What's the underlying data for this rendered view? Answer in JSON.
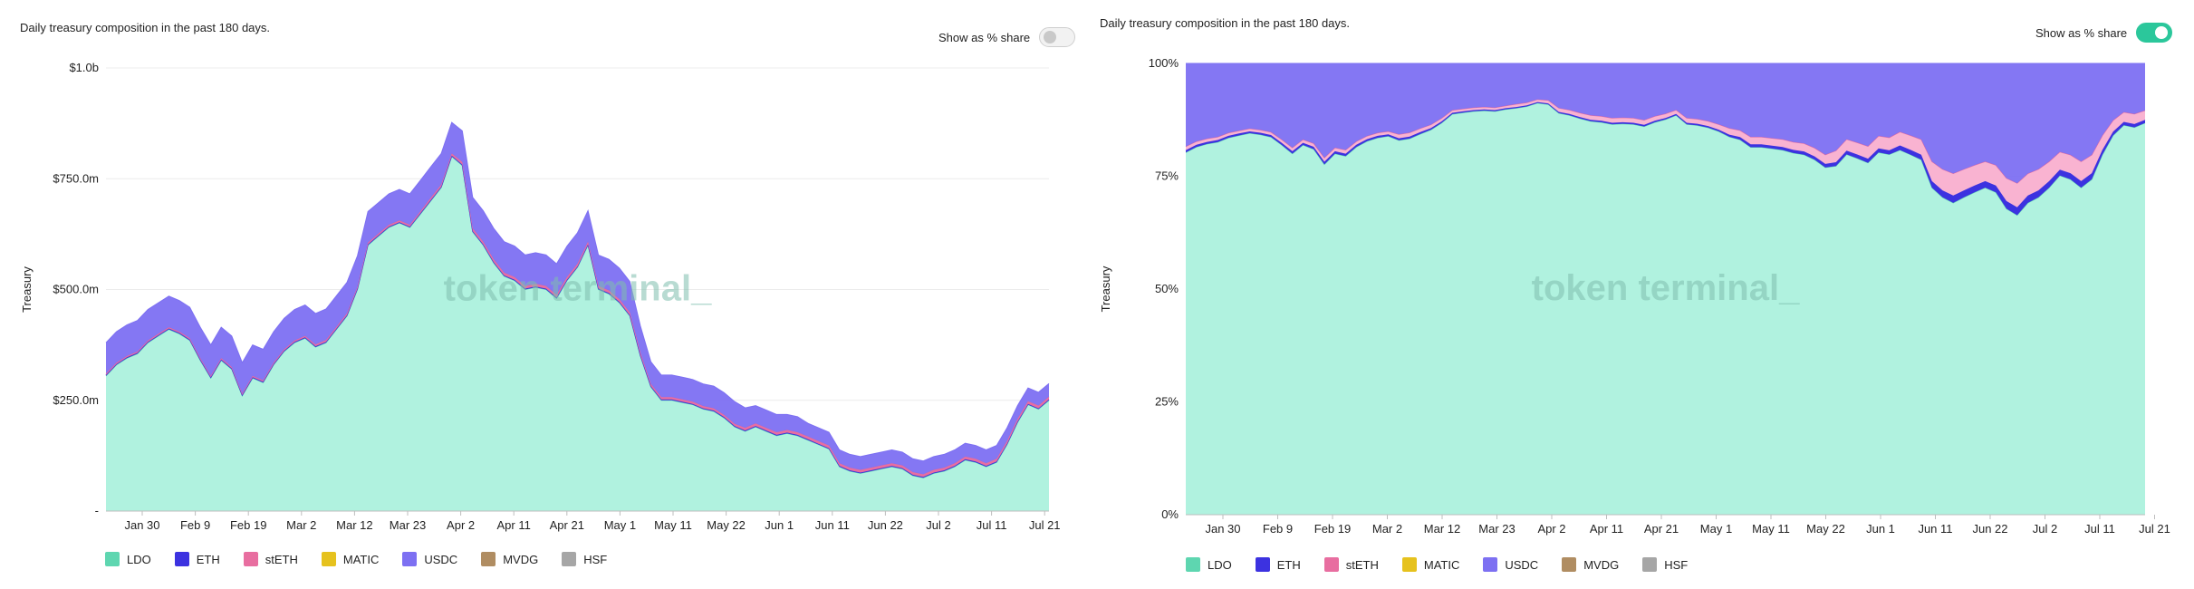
{
  "panels": [
    {
      "subtitle": "Daily treasury composition in the past 180 days.",
      "toggle_label": "Show as % share",
      "toggle_on": false
    },
    {
      "subtitle": "Daily treasury composition in the past 180 days.",
      "toggle_label": "Show as % share",
      "toggle_on": true
    }
  ],
  "watermark": "token terminal_",
  "legend": [
    {
      "name": "LDO",
      "color": "#5ed6b0"
    },
    {
      "name": "ETH",
      "color": "#3c32e0"
    },
    {
      "name": "stETH",
      "color": "#e86ea0"
    },
    {
      "name": "MATIC",
      "color": "#e6c21e"
    },
    {
      "name": "USDC",
      "color": "#7d70f2"
    },
    {
      "name": "MVDG",
      "color": "#b08d62"
    },
    {
      "name": "HSF",
      "color": "#a6a6a6"
    }
  ],
  "chart_data": [
    {
      "type": "area",
      "stacked": true,
      "ylabel": "Treasury",
      "ylim": [
        0,
        1000
      ],
      "y_unit": "millions USD",
      "yticks": [
        "-",
        "$250.0m",
        "$500.0m",
        "$750.0m",
        "$1.0b"
      ],
      "xticks": [
        "Jan 30",
        "Feb 9",
        "Feb 19",
        "Mar 2",
        "Mar 12",
        "Mar 23",
        "Apr 2",
        "Apr 11",
        "Apr 21",
        "May 1",
        "May 11",
        "May 22",
        "Jun 1",
        "Jun 11",
        "Jun 22",
        "Jul 2",
        "Jul 11",
        "Jul 21"
      ],
      "x_days": [
        "Jan 23",
        "Jan 25",
        "Jan 27",
        "Jan 29",
        "Jan 31",
        "Feb 2",
        "Feb 4",
        "Feb 6",
        "Feb 8",
        "Feb 10",
        "Feb 12",
        "Feb 14",
        "Feb 16",
        "Feb 18",
        "Feb 20",
        "Feb 22",
        "Feb 24",
        "Feb 26",
        "Feb 28",
        "Mar 2",
        "Mar 4",
        "Mar 6",
        "Mar 8",
        "Mar 10",
        "Mar 12",
        "Mar 14",
        "Mar 16",
        "Mar 18",
        "Mar 20",
        "Mar 22",
        "Mar 24",
        "Mar 26",
        "Mar 28",
        "Mar 30",
        "Apr 1",
        "Apr 3",
        "Apr 5",
        "Apr 7",
        "Apr 9",
        "Apr 11",
        "Apr 13",
        "Apr 15",
        "Apr 17",
        "Apr 19",
        "Apr 21",
        "Apr 23",
        "Apr 25",
        "Apr 27",
        "Apr 29",
        "May 1",
        "May 3",
        "May 5",
        "May 7",
        "May 9",
        "May 11",
        "May 13",
        "May 15",
        "May 17",
        "May 19",
        "May 21",
        "May 23",
        "May 25",
        "May 27",
        "May 29",
        "May 31",
        "Jun 2",
        "Jun 4",
        "Jun 6",
        "Jun 8",
        "Jun 10",
        "Jun 12",
        "Jun 14",
        "Jun 16",
        "Jun 18",
        "Jun 20",
        "Jun 22",
        "Jun 24",
        "Jun 26",
        "Jun 28",
        "Jun 30",
        "Jul 2",
        "Jul 4",
        "Jul 6",
        "Jul 8",
        "Jul 10",
        "Jul 12",
        "Jul 14",
        "Jul 16",
        "Jul 18",
        "Jul 20",
        "Jul 21"
      ],
      "series": [
        {
          "name": "LDO",
          "values": [
            305,
            330,
            345,
            355,
            380,
            395,
            410,
            400,
            385,
            340,
            300,
            340,
            320,
            260,
            300,
            290,
            330,
            360,
            380,
            390,
            370,
            380,
            410,
            440,
            500,
            600,
            620,
            640,
            650,
            640,
            670,
            700,
            730,
            800,
            780,
            630,
            600,
            560,
            530,
            520,
            500,
            505,
            500,
            480,
            520,
            550,
            600,
            500,
            490,
            470,
            440,
            350,
            280,
            250,
            250,
            245,
            240,
            230,
            225,
            210,
            190,
            180,
            190,
            180,
            170,
            175,
            170,
            160,
            150,
            140,
            100,
            90,
            85,
            90,
            95,
            100,
            95,
            80,
            75,
            85,
            90,
            100,
            115,
            110,
            100,
            110,
            150,
            200,
            240,
            230,
            250
          ]
        },
        {
          "name": "ETH",
          "values": [
            2,
            2,
            2,
            2,
            2,
            2,
            2,
            2,
            2,
            2,
            2,
            2,
            2,
            2,
            2,
            2,
            2,
            2,
            2,
            2,
            2,
            2,
            2,
            2,
            2,
            2,
            2,
            2,
            2,
            2,
            2,
            2,
            2,
            2,
            2,
            2,
            2,
            2,
            2,
            2,
            2,
            2,
            2,
            2,
            2,
            2,
            2,
            2,
            2,
            2,
            2,
            2,
            2,
            2,
            2,
            2,
            2,
            2,
            2,
            2,
            2,
            2,
            2,
            2,
            2,
            2,
            2,
            2,
            2,
            2,
            2,
            2,
            2,
            2,
            2,
            2,
            2,
            2,
            2,
            2,
            2,
            2,
            2,
            2,
            2,
            2,
            2,
            2,
            2,
            2,
            2
          ]
        },
        {
          "name": "stETH",
          "values": [
            3,
            3,
            3,
            3,
            3,
            3,
            3,
            3,
            3,
            3,
            3,
            3,
            3,
            3,
            3,
            3,
            3,
            3,
            3,
            3,
            4,
            4,
            4,
            4,
            4,
            4,
            4,
            4,
            4,
            4,
            4,
            5,
            5,
            5,
            6,
            6,
            6,
            6,
            6,
            6,
            6,
            6,
            6,
            6,
            6,
            6,
            6,
            6,
            6,
            6,
            6,
            6,
            5,
            5,
            5,
            5,
            5,
            5,
            5,
            5,
            5,
            6,
            6,
            6,
            6,
            6,
            6,
            6,
            6,
            6,
            6,
            6,
            6,
            6,
            6,
            6,
            6,
            6,
            6,
            6,
            6,
            6,
            6,
            6,
            6,
            6,
            6,
            6,
            6,
            6,
            6
          ]
        },
        {
          "name": "MATIC",
          "values": [
            0,
            0,
            0,
            0,
            0,
            0,
            0,
            0,
            0,
            0,
            0,
            0,
            0,
            0,
            0,
            0,
            0,
            0,
            0,
            0,
            0,
            0,
            0,
            0,
            0,
            0,
            0,
            0,
            0,
            0,
            0,
            0,
            0,
            0,
            0,
            0,
            0,
            0,
            0,
            0,
            0,
            0,
            0,
            0,
            0,
            0,
            0,
            0,
            0,
            0,
            0,
            0,
            0,
            0,
            0,
            0,
            0,
            0,
            0,
            0,
            0,
            0,
            0,
            0,
            0,
            0,
            0,
            0,
            0,
            0,
            0,
            0,
            0,
            0,
            0,
            0,
            0,
            0,
            0,
            0,
            0,
            0,
            0,
            0,
            0,
            0,
            0,
            0,
            0,
            0,
            0
          ]
        },
        {
          "name": "USDC",
          "values": [
            70,
            70,
            70,
            70,
            70,
            70,
            70,
            70,
            70,
            70,
            70,
            70,
            70,
            70,
            70,
            70,
            70,
            70,
            70,
            70,
            70,
            70,
            70,
            70,
            70,
            70,
            70,
            70,
            70,
            70,
            70,
            70,
            70,
            70,
            70,
            70,
            70,
            70,
            70,
            70,
            70,
            70,
            70,
            70,
            70,
            70,
            70,
            70,
            70,
            70,
            70,
            60,
            50,
            50,
            50,
            50,
            50,
            50,
            50,
            50,
            50,
            45,
            40,
            40,
            40,
            35,
            35,
            30,
            30,
            30,
            30,
            30,
            30,
            30,
            30,
            30,
            30,
            30,
            30,
            30,
            30,
            30,
            30,
            30,
            30,
            30,
            30,
            30,
            30,
            30,
            30
          ]
        },
        {
          "name": "MVDG",
          "values": [
            0,
            0,
            0,
            0,
            0,
            0,
            0,
            0,
            0,
            0,
            0,
            0,
            0,
            0,
            0,
            0,
            0,
            0,
            0,
            0,
            0,
            0,
            0,
            0,
            0,
            0,
            0,
            0,
            0,
            0,
            0,
            0,
            0,
            0,
            0,
            0,
            0,
            0,
            0,
            0,
            0,
            0,
            0,
            0,
            0,
            0,
            0,
            0,
            0,
            0,
            0,
            0,
            0,
            0,
            0,
            0,
            0,
            0,
            0,
            0,
            0,
            0,
            0,
            0,
            0,
            0,
            0,
            0,
            0,
            0,
            0,
            0,
            0,
            0,
            0,
            0,
            0,
            0,
            0,
            0,
            0,
            0,
            0,
            0,
            0,
            0,
            0,
            0,
            0,
            0,
            0
          ]
        },
        {
          "name": "HSF",
          "values": [
            0,
            0,
            0,
            0,
            0,
            0,
            0,
            0,
            0,
            0,
            0,
            0,
            0,
            0,
            0,
            0,
            0,
            0,
            0,
            0,
            0,
            0,
            0,
            0,
            0,
            0,
            0,
            0,
            0,
            0,
            0,
            0,
            0,
            0,
            0,
            0,
            0,
            0,
            0,
            0,
            0,
            0,
            0,
            0,
            0,
            0,
            0,
            0,
            0,
            0,
            0,
            0,
            0,
            0,
            0,
            0,
            0,
            0,
            0,
            0,
            0,
            0,
            0,
            0,
            0,
            0,
            0,
            0,
            0,
            0,
            0,
            0,
            0,
            0,
            0,
            0,
            0,
            0,
            0,
            0,
            0,
            0,
            0,
            0,
            0,
            0,
            0,
            0,
            0,
            0,
            0
          ]
        }
      ],
      "grid": true
    },
    {
      "type": "area",
      "stacked": true,
      "normalized": true,
      "ylabel": "Treasury",
      "ylim": [
        0,
        100
      ],
      "y_unit": "percent",
      "yticks": [
        "0%",
        "25%",
        "50%",
        "75%",
        "100%"
      ],
      "xticks": [
        "Jan 30",
        "Feb 9",
        "Feb 19",
        "Mar 2",
        "Mar 12",
        "Mar 23",
        "Apr 2",
        "Apr 11",
        "Apr 21",
        "May 1",
        "May 11",
        "May 22",
        "Jun 1",
        "Jun 11",
        "Jun 22",
        "Jul 2",
        "Jul 11",
        "Jul 21"
      ],
      "grid": true
    }
  ]
}
